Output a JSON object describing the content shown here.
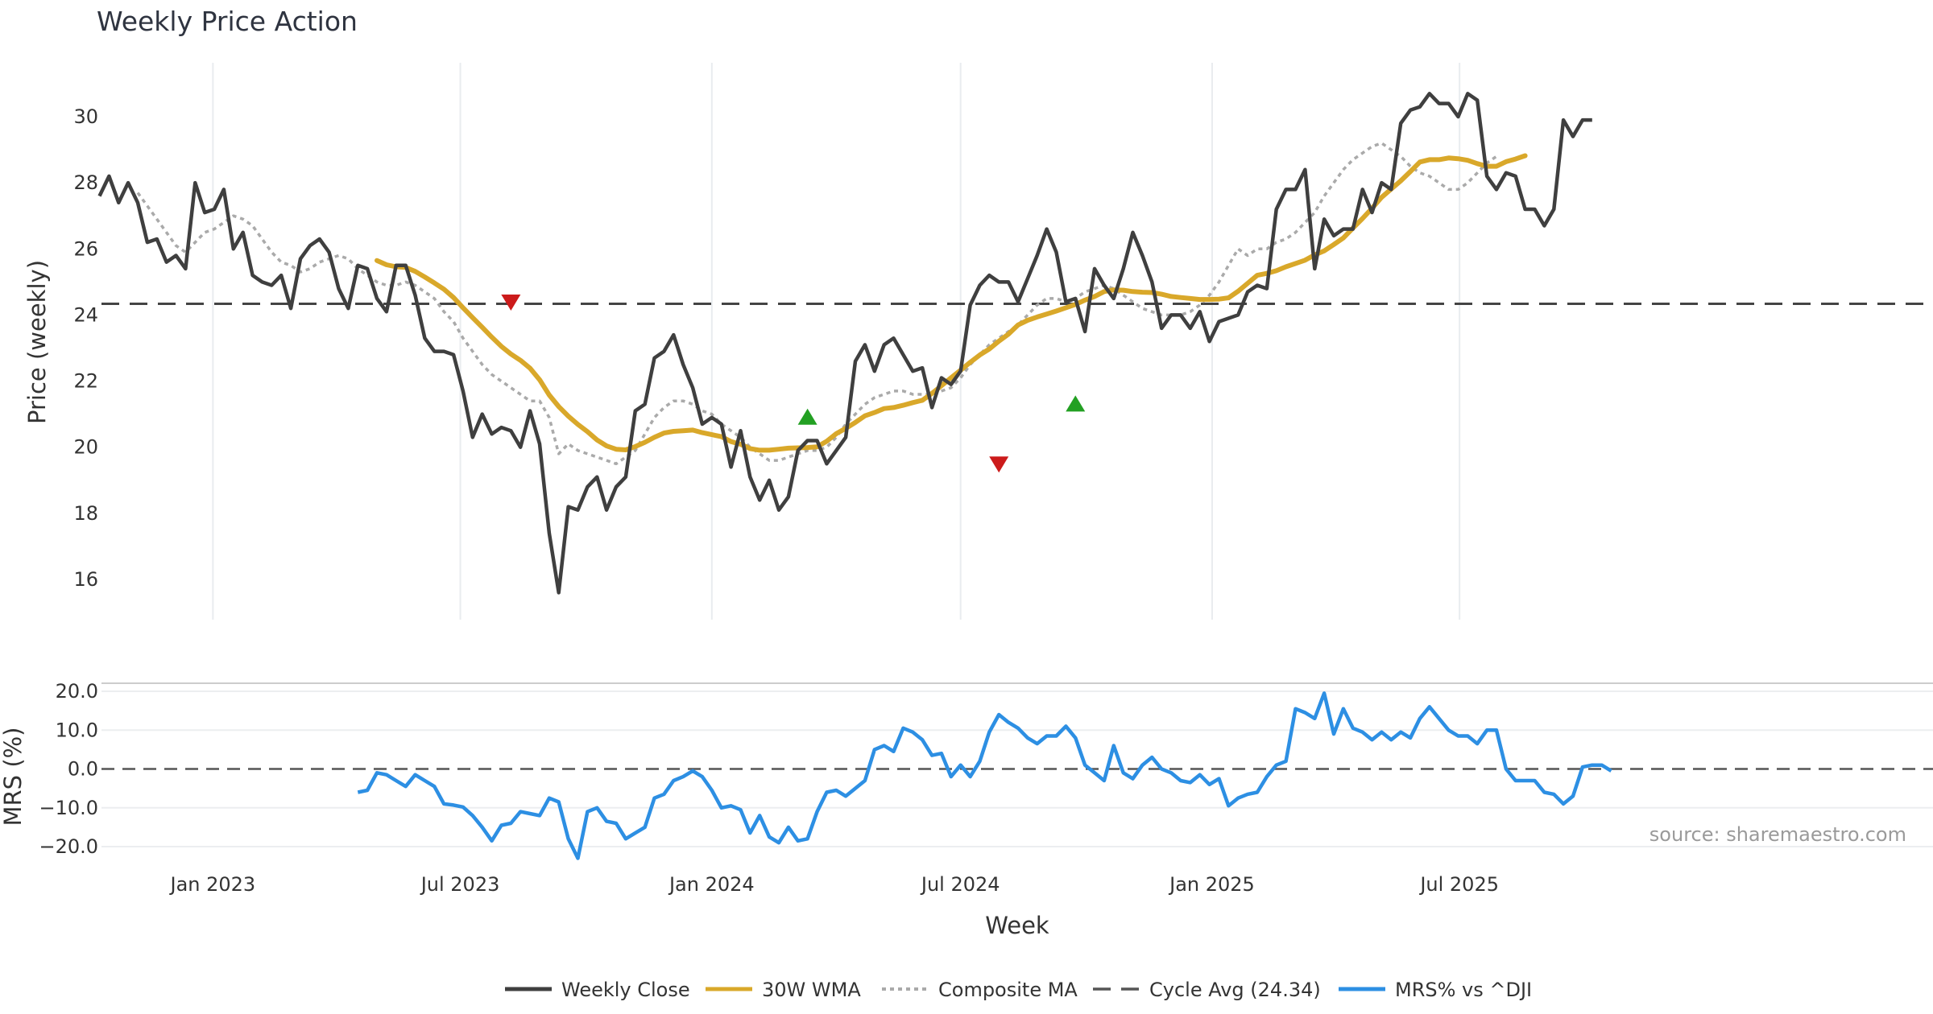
{
  "chart_title": "Weekly Price Action",
  "source_note": "source: sharemaestro.com",
  "legend": [
    {
      "key": "close",
      "label": "Weekly Close",
      "style": "solid",
      "color": "#3f3f3f"
    },
    {
      "key": "wma",
      "label": "30W WMA",
      "style": "solid",
      "color": "#d9a82a"
    },
    {
      "key": "cma",
      "label": "Composite MA",
      "style": "dotted",
      "color": "#aaaaaa"
    },
    {
      "key": "cycle",
      "label": "Cycle Avg (24.34)",
      "style": "dashed",
      "color": "#555555"
    },
    {
      "key": "mrs",
      "label": "MRS% vs ^DJI",
      "style": "solid",
      "color": "#2d8fe3"
    }
  ],
  "chart_data": [
    {
      "type": "line",
      "title": "Weekly Price Action",
      "xlabel": "",
      "ylabel": "Price (weekly)",
      "x_start": "2022-10-10",
      "x_step_days": 7,
      "ylim": [
        15,
        31.5
      ],
      "yticks": [
        16,
        18,
        20,
        22,
        24,
        26,
        28,
        30
      ],
      "xticks": [
        "Jan 2023",
        "Jul 2023",
        "Jan 2024",
        "Jul 2024",
        "Jan 2025",
        "Jul 2025"
      ],
      "xtick_dates": [
        "2023-01-01",
        "2023-07-01",
        "2024-01-01",
        "2024-07-01",
        "2025-01-01",
        "2025-07-01"
      ],
      "grid": true,
      "reference_line": {
        "label": "Cycle Avg (24.34)",
        "value": 24.34
      },
      "series": [
        {
          "name": "Weekly Close",
          "values": [
            27.6,
            28.2,
            27.4,
            28.0,
            27.4,
            26.2,
            26.3,
            25.6,
            25.8,
            25.4,
            28.0,
            27.1,
            27.2,
            27.8,
            26.0,
            26.5,
            25.2,
            25.0,
            24.9,
            25.2,
            24.2,
            25.7,
            26.1,
            26.3,
            25.9,
            24.8,
            24.2,
            25.5,
            25.4,
            24.5,
            24.1,
            25.5,
            25.5,
            24.6,
            23.3,
            22.9,
            22.9,
            22.8,
            21.7,
            20.3,
            21.0,
            20.4,
            20.6,
            20.5,
            20.0,
            21.1,
            20.1,
            17.4,
            15.6,
            18.2,
            18.1,
            18.8,
            19.1,
            18.1,
            18.8,
            19.1,
            21.1,
            21.3,
            22.7,
            22.9,
            23.4,
            22.5,
            21.8,
            20.7,
            20.9,
            20.7,
            19.4,
            20.5,
            19.1,
            18.4,
            19.0,
            18.1,
            18.5,
            19.9,
            20.2,
            20.2,
            19.5,
            19.9,
            20.3,
            22.6,
            23.1,
            22.3,
            23.1,
            23.3,
            22.8,
            22.3,
            22.4,
            21.2,
            22.1,
            21.9,
            22.3,
            24.3,
            24.9,
            25.2,
            25.0,
            25.0,
            24.4,
            25.1,
            25.8,
            26.6,
            25.9,
            24.4,
            24.5,
            23.5,
            25.4,
            24.9,
            24.5,
            25.4,
            26.5,
            25.8,
            25.0,
            23.6,
            24.0,
            24.0,
            23.6,
            24.1,
            23.2,
            23.8,
            23.9,
            24.0,
            24.7,
            24.9,
            24.8,
            27.2,
            27.8,
            27.8,
            28.4,
            25.4,
            26.9,
            26.4,
            26.6,
            26.6,
            27.8,
            27.1,
            28.0,
            27.8,
            29.8,
            30.2,
            30.3,
            30.7,
            30.4,
            30.4,
            30.0,
            30.7,
            30.5,
            28.2,
            27.8,
            28.3,
            28.2,
            27.2,
            27.2,
            26.7,
            27.2,
            29.9,
            29.4,
            29.9,
            29.9
          ]
        },
        {
          "name": "30W WMA",
          "start_index": 29,
          "values": [
            25.65,
            25.52,
            25.46,
            25.44,
            25.32,
            25.15,
            24.97,
            24.78,
            24.53,
            24.22,
            23.92,
            23.63,
            23.33,
            23.05,
            22.82,
            22.63,
            22.39,
            22.04,
            21.58,
            21.23,
            20.94,
            20.69,
            20.47,
            20.22,
            20.04,
            19.94,
            19.92,
            20.02,
            20.15,
            20.3,
            20.43,
            20.48,
            20.5,
            20.52,
            20.44,
            20.38,
            20.32,
            20.17,
            20.09,
            19.96,
            19.91,
            19.91,
            19.94,
            19.97,
            19.98,
            19.99,
            20.01,
            20.18,
            20.41,
            20.57,
            20.75,
            20.95,
            21.05,
            21.17,
            21.2,
            21.27,
            21.35,
            21.42,
            21.63,
            21.86,
            22.1,
            22.33,
            22.57,
            22.79,
            22.97,
            23.21,
            23.42,
            23.7,
            23.84,
            23.94,
            24.03,
            24.12,
            24.22,
            24.32,
            24.45,
            24.56,
            24.71,
            24.76,
            24.75,
            24.71,
            24.69,
            24.68,
            24.63,
            24.56,
            24.53,
            24.5,
            24.47,
            24.47,
            24.48,
            24.52,
            24.72,
            24.96,
            25.2,
            25.26,
            25.34,
            25.46,
            25.56,
            25.66,
            25.82,
            25.94,
            26.13,
            26.33,
            26.63,
            26.92,
            27.23,
            27.56,
            27.81,
            28.06,
            28.34,
            28.63,
            28.7,
            28.7,
            28.75,
            28.73,
            28.68,
            28.58,
            28.5,
            28.5,
            28.64,
            28.72,
            28.82
          ]
        },
        {
          "name": "Composite MA",
          "start_index": 4,
          "values": [
            27.7,
            27.3,
            26.9,
            26.5,
            26.1,
            25.9,
            26.2,
            26.5,
            26.6,
            26.8,
            27.0,
            26.9,
            26.7,
            26.3,
            25.9,
            25.6,
            25.5,
            25.3,
            25.4,
            25.6,
            25.7,
            25.8,
            25.7,
            25.4,
            25.2,
            25.0,
            24.9,
            24.9,
            25.0,
            24.9,
            24.7,
            24.5,
            24.1,
            23.8,
            23.3,
            22.9,
            22.5,
            22.2,
            22.0,
            21.8,
            21.6,
            21.4,
            21.4,
            20.9,
            19.8,
            20.1,
            19.9,
            19.8,
            19.7,
            19.6,
            19.5,
            19.7,
            19.9,
            20.4,
            20.9,
            21.2,
            21.4,
            21.4,
            21.3,
            21.1,
            21.0,
            20.7,
            20.5,
            20.3,
            20.0,
            19.8,
            19.6,
            19.6,
            19.7,
            19.8,
            19.9,
            19.9,
            20.0,
            20.3,
            20.7,
            21.0,
            21.3,
            21.5,
            21.6,
            21.7,
            21.7,
            21.6,
            21.6,
            21.6,
            21.7,
            21.8,
            22.1,
            22.5,
            22.8,
            23.1,
            23.3,
            23.5,
            23.7,
            24.0,
            24.3,
            24.5,
            24.5,
            24.4,
            24.5,
            24.7,
            24.8,
            24.9,
            24.8,
            24.6,
            24.4,
            24.2,
            24.1,
            24.0,
            24.0,
            24.0,
            24.1,
            24.3,
            24.6,
            25.0,
            25.5,
            26.0,
            25.8,
            26.0,
            26.0,
            26.2,
            26.3,
            26.5,
            26.8,
            27.1,
            27.6,
            28.0,
            28.4,
            28.7,
            28.9,
            29.1,
            29.2,
            29.0,
            28.8,
            28.5,
            28.3,
            28.2,
            28.0,
            27.8,
            27.8,
            28.0,
            28.3,
            28.6,
            28.8
          ]
        }
      ],
      "markers": [
        {
          "type": "sell",
          "index": 43,
          "value": 24.4,
          "color": "#cc1b1b"
        },
        {
          "type": "buy",
          "index": 74,
          "value": 20.9,
          "color": "#23a023"
        },
        {
          "type": "sell",
          "index": 94,
          "value": 19.5,
          "color": "#cc1b1b"
        },
        {
          "type": "buy",
          "index": 102,
          "value": 21.3,
          "color": "#23a023"
        }
      ]
    },
    {
      "type": "line",
      "title": "",
      "xlabel": "Week",
      "ylabel": "MRS (%)",
      "x_start": "2023-04-17",
      "x_step_days": 7,
      "ylim": [
        -25,
        24
      ],
      "yticks": [
        20.0,
        10.0,
        0.0,
        -10.0,
        -20.0
      ],
      "ytick_labels": [
        "20.0",
        "10.0",
        "0.0",
        "−10.0",
        "−20.0"
      ],
      "xticks": [
        "Jan 2023",
        "Jul 2023",
        "Jan 2024",
        "Jul 2024",
        "Jan 2025",
        "Jul 2025"
      ],
      "grid": true,
      "zero_line": true,
      "series": [
        {
          "name": "MRS% vs ^DJI",
          "values": [
            -6.0,
            -5.5,
            -1.0,
            -1.5,
            -3.0,
            -4.5,
            -1.5,
            -3.0,
            -4.5,
            -9.0,
            -9.3,
            -9.8,
            -12.0,
            -15.0,
            -18.5,
            -14.5,
            -14.0,
            -11.0,
            -11.5,
            -12.0,
            -7.5,
            -8.5,
            -18.0,
            -23.0,
            -11.0,
            -10.0,
            -13.5,
            -14.0,
            -18.0,
            -16.5,
            -15.0,
            -7.5,
            -6.5,
            -3.0,
            -2.0,
            -0.5,
            -2.0,
            -5.5,
            -10.0,
            -9.5,
            -10.5,
            -16.5,
            -12.0,
            -17.5,
            -19.0,
            -15.0,
            -18.5,
            -18.0,
            -11.0,
            -6.0,
            -5.5,
            -7.0,
            -5.0,
            -3.0,
            5.0,
            6.0,
            4.5,
            10.5,
            9.5,
            7.5,
            3.5,
            4.0,
            -2.0,
            1.0,
            -2.0,
            2.0,
            9.5,
            14.0,
            12.0,
            10.5,
            8.0,
            6.5,
            8.5,
            8.5,
            11.0,
            8.0,
            1.0,
            -1.0,
            -3.0,
            6.0,
            -1.0,
            -2.5,
            1.0,
            3.0,
            0.0,
            -1.0,
            -3.0,
            -3.5,
            -1.5,
            -4.0,
            -2.5,
            -9.5,
            -7.5,
            -6.5,
            -6.0,
            -2.0,
            1.0,
            2.0,
            15.5,
            14.5,
            13.0,
            19.5,
            9.0,
            15.5,
            10.5,
            9.5,
            7.5,
            9.5,
            7.5,
            9.5,
            8.0,
            13.0,
            16.0,
            13.0,
            10.0,
            8.5,
            8.5,
            6.5,
            10.0,
            10.0,
            0.0,
            -3.0,
            -3.0,
            -3.0,
            -6.0,
            -6.5,
            -9.0,
            -7.0,
            0.5,
            1.0,
            1.0,
            -0.5
          ]
        }
      ]
    }
  ]
}
